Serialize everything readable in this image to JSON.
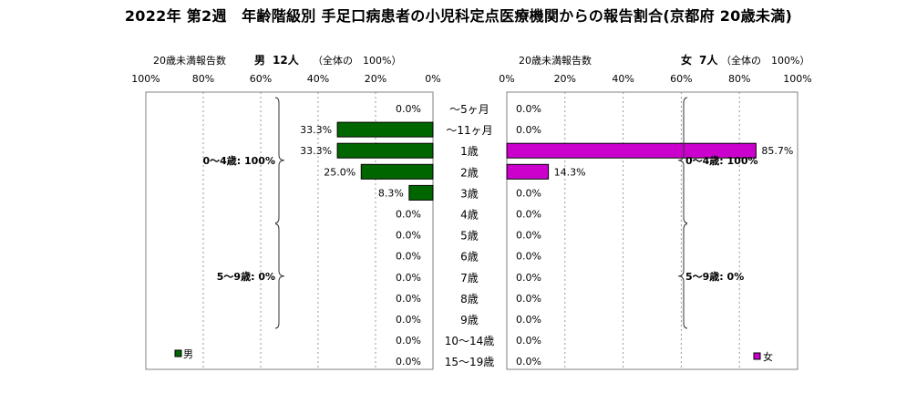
{
  "title": "2022年 第2週　年齢階級別 手足口病患者の小児科定点医療機関からの報告割合(京都府 20歳未満)",
  "chart_data": [
    {
      "type": "bar",
      "orientation": "horizontal",
      "direction": "right-to-left",
      "header": {
        "prefix": "20歳未満報告数",
        "sex": "男",
        "count": "12人",
        "total": "（全体の　100%）"
      },
      "legend": {
        "label": "男",
        "placement": "bottom-left"
      },
      "color": "#006600",
      "xlim": [
        0,
        100
      ],
      "ticks": [
        "100%",
        "80%",
        "60%",
        "40%",
        "20%",
        "0%"
      ],
      "grid": true,
      "categories": [
        "～5ヶ月",
        "～11ヶ月",
        "1歳",
        "2歳",
        "3歳",
        "4歳",
        "5歳",
        "6歳",
        "7歳",
        "8歳",
        "9歳",
        "10～14歳",
        "15～19歳"
      ],
      "values": [
        0.0,
        33.3,
        33.3,
        25.0,
        8.3,
        0.0,
        0.0,
        0.0,
        0.0,
        0.0,
        0.0,
        0.0,
        0.0
      ],
      "value_labels": [
        "0.0%",
        "33.3%",
        "33.3%",
        "25.0%",
        "8.3%",
        "0.0%",
        "0.0%",
        "0.0%",
        "0.0%",
        "0.0%",
        "0.0%",
        "0.0%",
        "0.0%"
      ],
      "annotations": [
        {
          "text": "0～4歳: 100%",
          "from": 0,
          "to": 5
        },
        {
          "text": "5～9歳: 0%",
          "from": 6,
          "to": 10
        }
      ]
    },
    {
      "type": "bar",
      "orientation": "horizontal",
      "direction": "left-to-right",
      "header": {
        "prefix": "20歳未満報告数",
        "sex": "女",
        "count": "7人",
        "total": "（全体の　100%）"
      },
      "legend": {
        "label": "女",
        "placement": "bottom-right"
      },
      "color": "#cc00cc",
      "xlim": [
        0,
        100
      ],
      "ticks": [
        "0%",
        "20%",
        "40%",
        "60%",
        "80%",
        "100%"
      ],
      "grid": true,
      "categories": [
        "～5ヶ月",
        "～11ヶ月",
        "1歳",
        "2歳",
        "3歳",
        "4歳",
        "5歳",
        "6歳",
        "7歳",
        "8歳",
        "9歳",
        "10～14歳",
        "15～19歳"
      ],
      "values": [
        0.0,
        0.0,
        85.7,
        14.3,
        0.0,
        0.0,
        0.0,
        0.0,
        0.0,
        0.0,
        0.0,
        0.0,
        0.0
      ],
      "value_labels": [
        "0.0%",
        "0.0%",
        "85.7%",
        "14.3%",
        "0.0%",
        "0.0%",
        "0.0%",
        "0.0%",
        "0.0%",
        "0.0%",
        "0.0%",
        "0.0%",
        "0.0%"
      ],
      "annotations": [
        {
          "text": "0～4歳: 100%",
          "from": 0,
          "to": 5
        },
        {
          "text": "5～9歳: 0%",
          "from": 6,
          "to": 10
        }
      ]
    }
  ]
}
